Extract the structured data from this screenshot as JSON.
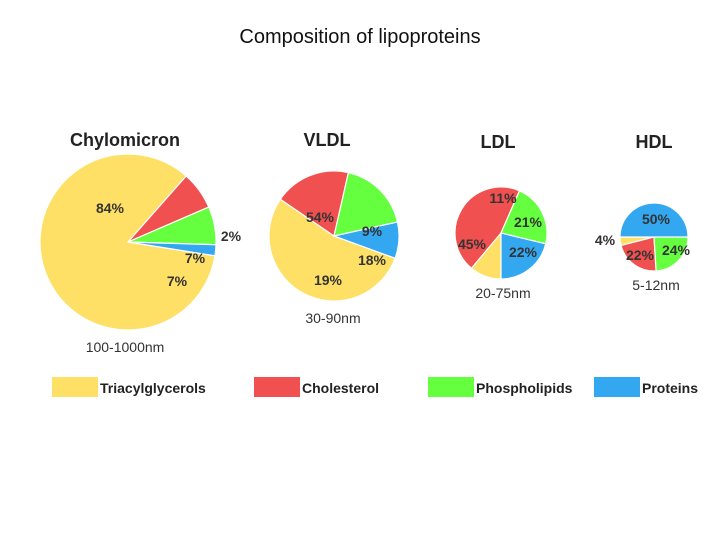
{
  "title": "Composition of lipoproteins",
  "legend": [
    {
      "label": "Triacylglycerols",
      "color": "#FFE066"
    },
    {
      "label": "Cholesterol",
      "color": "#F05050"
    },
    {
      "label": "Phospholipids",
      "color": "#66FF40"
    },
    {
      "label": "Proteins",
      "color": "#33A8F0"
    }
  ],
  "chart_data": [
    {
      "type": "pie",
      "title": "Chylomicron",
      "size_label": "100-1000nm",
      "categories": [
        "Triacylglycerols",
        "Cholesterol",
        "Phospholipids",
        "Proteins"
      ],
      "values": [
        84,
        7,
        7,
        2
      ],
      "labels": [
        "84%",
        "7%",
        "7%",
        "2%"
      ]
    },
    {
      "type": "pie",
      "title": "VLDL",
      "size_label": "30-90nm",
      "categories": [
        "Triacylglycerols",
        "Cholesterol",
        "Phospholipids",
        "Proteins"
      ],
      "values": [
        54,
        19,
        18,
        9
      ],
      "labels": [
        "54%",
        "19%",
        "18%",
        "9%"
      ]
    },
    {
      "type": "pie",
      "title": "LDL",
      "size_label": "20-75nm",
      "categories": [
        "Triacylglycerols",
        "Cholesterol",
        "Phospholipids",
        "Proteins"
      ],
      "values": [
        11,
        45,
        22,
        21
      ],
      "labels": [
        "11%",
        "45%",
        "22%",
        "21%"
      ]
    },
    {
      "type": "pie",
      "title": "HDL",
      "size_label": "5-12nm",
      "categories": [
        "Triacylglycerols",
        "Cholesterol",
        "Phospholipids",
        "Proteins"
      ],
      "values": [
        4,
        22,
        24,
        50
      ],
      "labels": [
        "4%",
        "22%",
        "24%",
        "50%"
      ]
    }
  ]
}
